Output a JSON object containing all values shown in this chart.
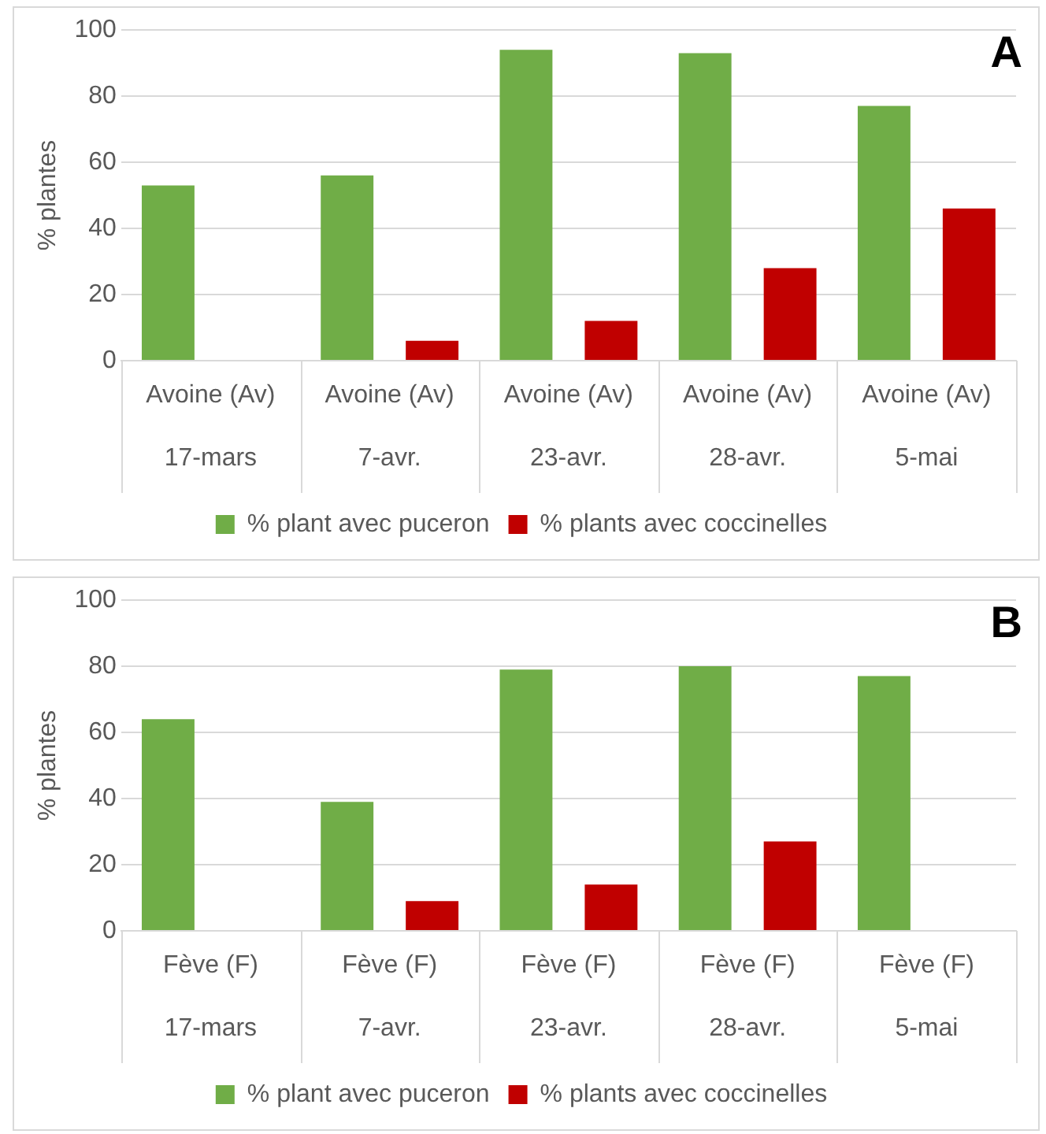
{
  "chart_data": [
    {
      "type": "bar",
      "title": "A",
      "ylabel": "% plantes",
      "categories": [
        "Avoine (Av)\n17-mars",
        "Avoine (Av)\n7-avr.",
        "Avoine (Av)\n23-avr.",
        "Avoine (Av)\n28-avr.",
        "Avoine (Av)\n5-mai"
      ],
      "series": [
        {
          "name": "% plant avec puceron",
          "color": "#70ad47",
          "values": [
            53,
            56,
            94,
            93,
            77
          ]
        },
        {
          "name": "% plants avec coccinelles",
          "color": "#c00000",
          "values": [
            null,
            6,
            12,
            28,
            46
          ]
        }
      ],
      "ylim": [
        0,
        100
      ],
      "yticks": [
        0,
        20,
        40,
        60,
        80,
        100
      ],
      "grid": "y",
      "legend": "bottom"
    },
    {
      "type": "bar",
      "title": "B",
      "ylabel": "% plantes",
      "categories": [
        "Fève (F)\n17-mars",
        "Fève (F)\n7-avr.",
        "Fève (F)\n23-avr.",
        "Fève (F)\n28-avr.",
        "Fève (F)\n5-mai"
      ],
      "series": [
        {
          "name": "% plant avec puceron",
          "color": "#70ad47",
          "values": [
            64,
            39,
            79,
            80,
            77
          ]
        },
        {
          "name": "% plants avec coccinelles",
          "color": "#c00000",
          "values": [
            null,
            9,
            14,
            27,
            null
          ]
        }
      ],
      "ylim": [
        0,
        100
      ],
      "yticks": [
        0,
        20,
        40,
        60,
        80,
        100
      ],
      "grid": "y",
      "legend": "bottom"
    }
  ]
}
